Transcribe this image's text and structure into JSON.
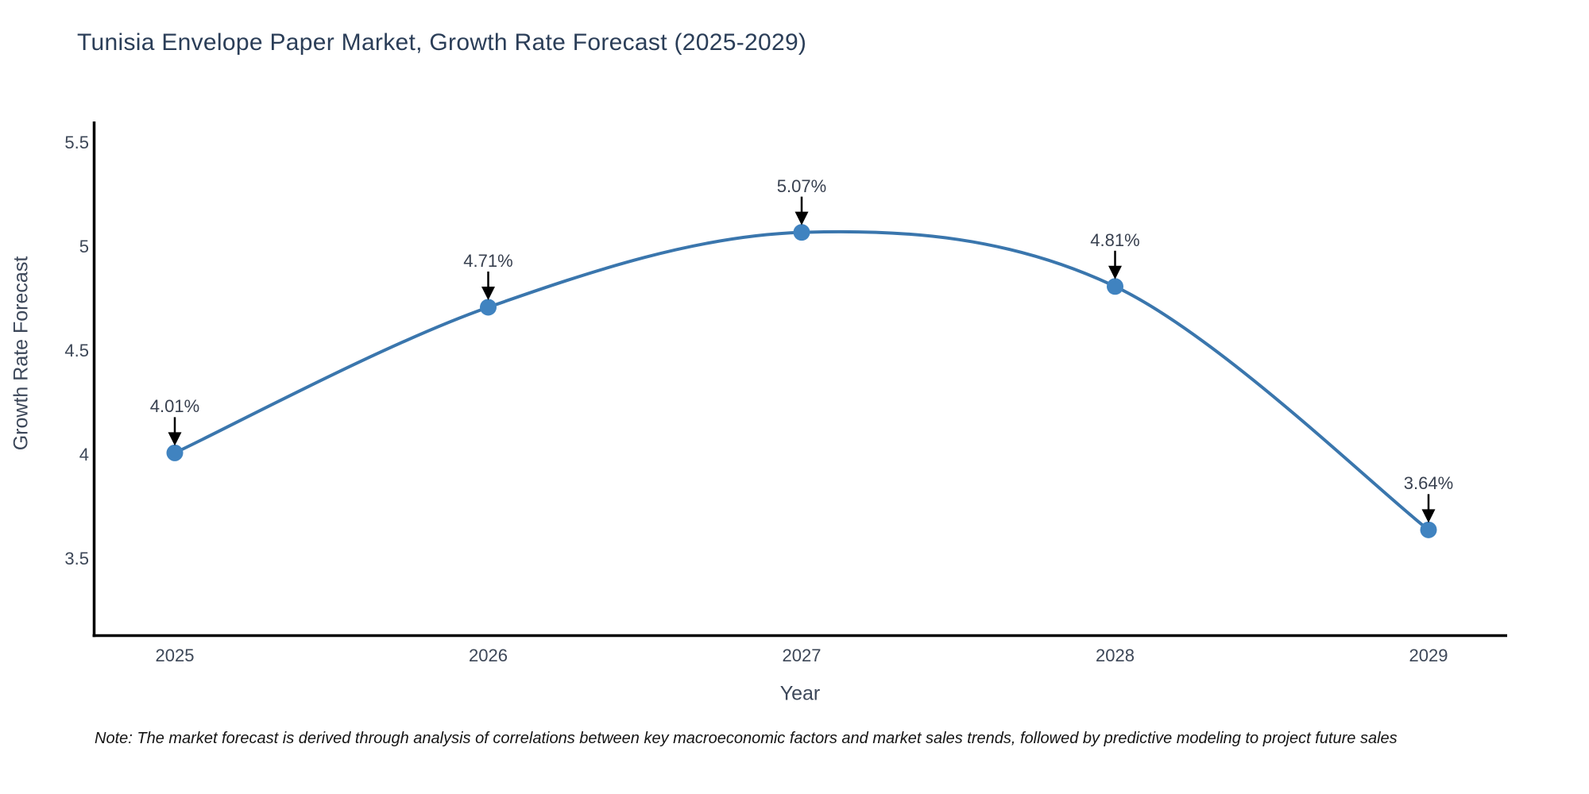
{
  "title": "Tunisia Envelope Paper Market, Growth Rate Forecast (2025-2029)",
  "note": "Note: The market forecast is derived through analysis of correlations between key macroeconomic factors and market sales trends, followed by predictive modeling to project future sales",
  "chart_data": {
    "type": "line",
    "title": "Tunisia Envelope Paper Market, Growth Rate Forecast (2025-2029)",
    "xlabel": "Year",
    "ylabel": "Growth Rate Forecast",
    "x": [
      2025,
      2026,
      2027,
      2028,
      2029
    ],
    "values": [
      4.01,
      4.71,
      5.07,
      4.81,
      3.64
    ],
    "point_labels": [
      "4.01%",
      "4.71%",
      "5.07%",
      "4.81%",
      "3.64%"
    ],
    "xtick_labels": [
      "2025",
      "2026",
      "2027",
      "2028",
      "2029"
    ],
    "ytick_values": [
      5.5,
      5,
      4.5,
      4,
      3.5
    ],
    "ytick_labels": [
      "5.5",
      "5",
      "4.5",
      "4",
      "3.5"
    ],
    "ylim": [
      3.1,
      5.62
    ],
    "grid": false,
    "legend": "none",
    "colors": {
      "line": "#3a76ad",
      "marker": "#4083c0",
      "axis": "#000000",
      "arrow": "#000000",
      "title_text": "#2b3e58",
      "tick_text": "#3d4757"
    }
  }
}
